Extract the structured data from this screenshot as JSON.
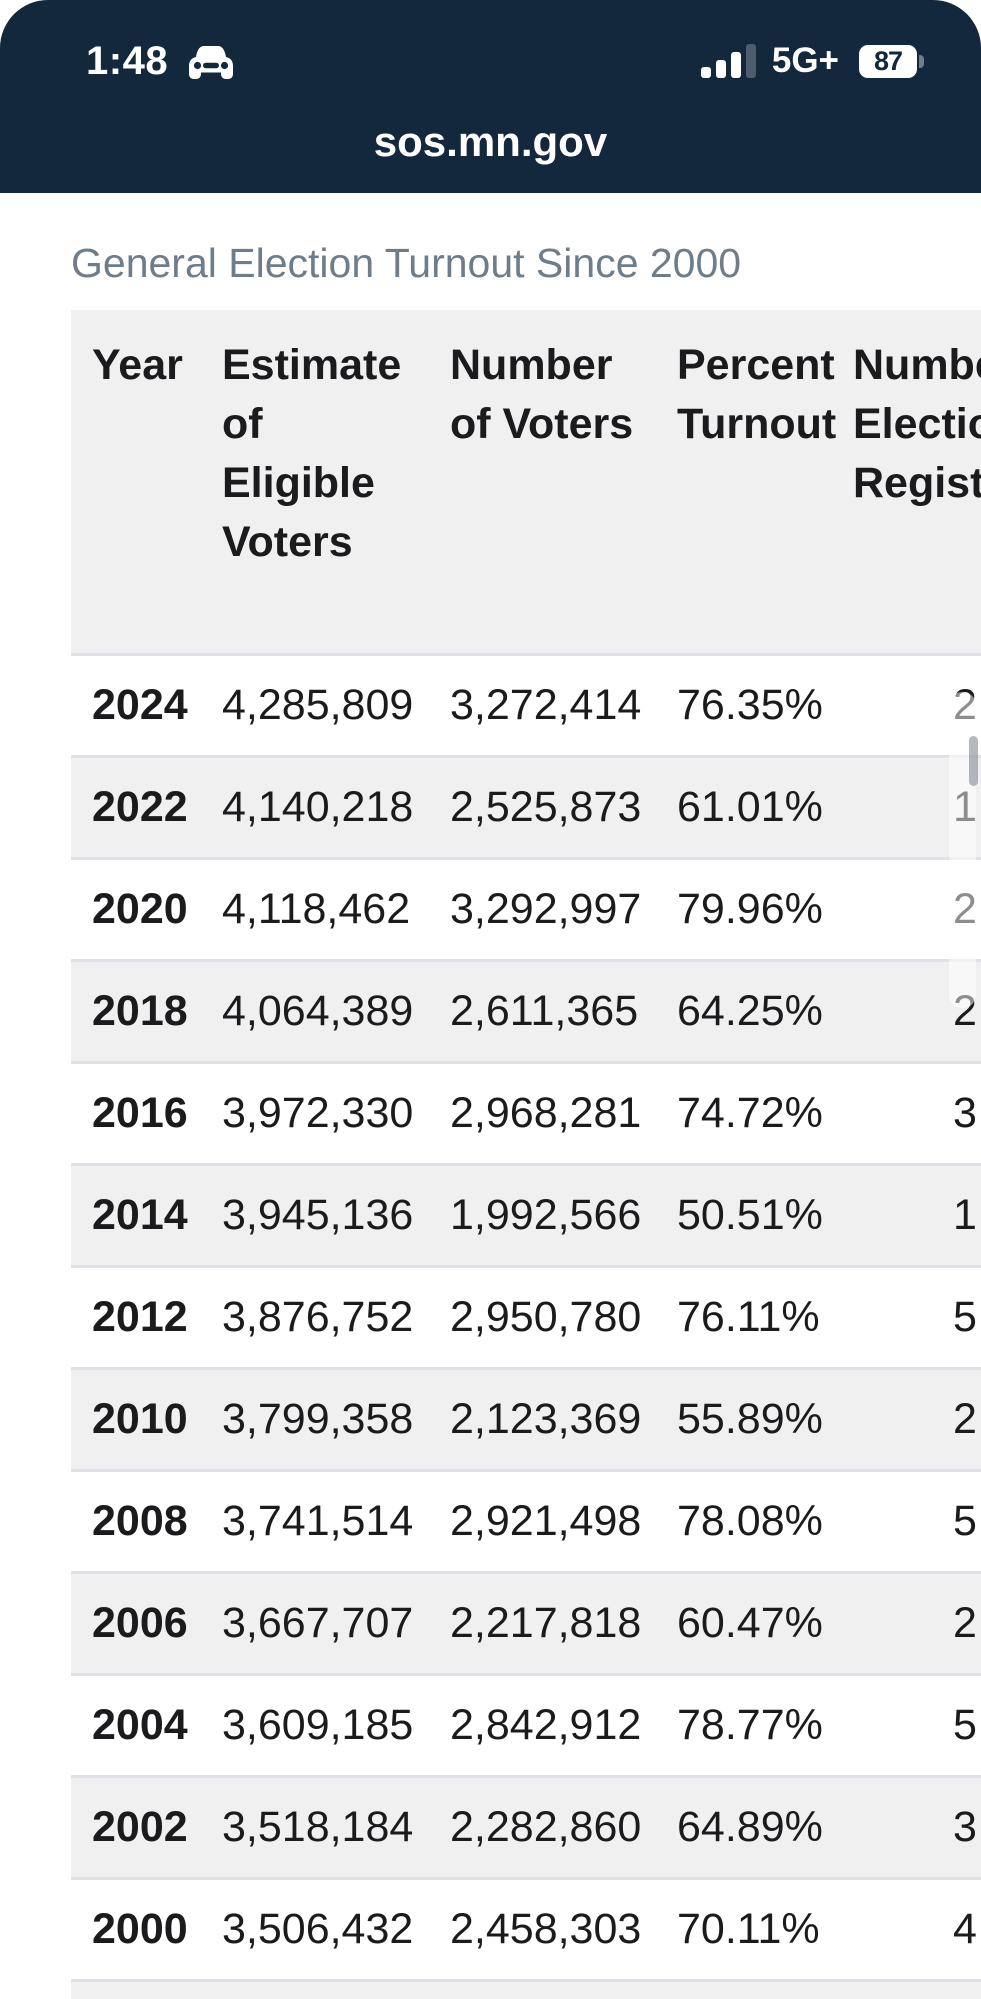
{
  "colors": {
    "header_navy": "#13273D",
    "status_text": "#FFFFFF",
    "title_gray": "#6F7D8A",
    "row_alt_gray": "#F0F0F1",
    "divider": "#DCE2E8",
    "text_dark": "#1B1B1E"
  },
  "status_bar": {
    "time": "1:48",
    "carplay_icon": "car-icon",
    "signal_bars_filled": 3,
    "signal_bars_total": 4,
    "network": "5G+",
    "battery_percent": "87"
  },
  "browser": {
    "url": "sos.mn.gov"
  },
  "page": {
    "title": "General Election Turnout Since 2000"
  },
  "table": {
    "column_keys": [
      "year",
      "eligible-voters",
      "number-of-voters",
      "percent-turnout",
      "election-day-registrations"
    ],
    "columns": [
      {
        "label": "Year"
      },
      {
        "label": "Estimate\nof\nEligible\nVoters"
      },
      {
        "label": "Number\nof Voters"
      },
      {
        "label": "Percent\nTurnout"
      },
      {
        "label": "Number\nElection Day\nRegistrations",
        "clipped_at_viewport": true
      }
    ],
    "rows": [
      {
        "cells": [
          "2024",
          "4,285,809",
          "3,272,414",
          "76.35%",
          "2"
        ]
      },
      {
        "cells": [
          "2022",
          "4,140,218",
          "2,525,873",
          "61.01%",
          "1"
        ]
      },
      {
        "cells": [
          "2020",
          "4,118,462",
          "3,292,997",
          "79.96%",
          "2"
        ]
      },
      {
        "cells": [
          "2018",
          "4,064,389",
          "2,611,365",
          "64.25%",
          "2"
        ]
      },
      {
        "cells": [
          "2016",
          "3,972,330",
          "2,968,281",
          "74.72%",
          "3"
        ]
      },
      {
        "cells": [
          "2014",
          "3,945,136",
          "1,992,566",
          "50.51%",
          "1"
        ]
      },
      {
        "cells": [
          "2012",
          "3,876,752",
          "2,950,780",
          "76.11%",
          "5"
        ]
      },
      {
        "cells": [
          "2010",
          "3,799,358",
          "2,123,369",
          "55.89%",
          "2"
        ]
      },
      {
        "cells": [
          "2008",
          "3,741,514",
          "2,921,498",
          "78.08%",
          "5"
        ]
      },
      {
        "cells": [
          "2006",
          "3,667,707",
          "2,217,818",
          "60.47%",
          "2"
        ]
      },
      {
        "cells": [
          "2004",
          "3,609,185",
          "2,842,912",
          "78.77%",
          "5"
        ]
      },
      {
        "cells": [
          "2002",
          "3,518,184",
          "2,282,860",
          "64.89%",
          "3"
        ]
      },
      {
        "cells": [
          "2000",
          "3,506,432",
          "2,458,303",
          "70.11%",
          "4"
        ]
      }
    ],
    "last_column_values_clipped": true,
    "has_partial_next_row": true
  }
}
